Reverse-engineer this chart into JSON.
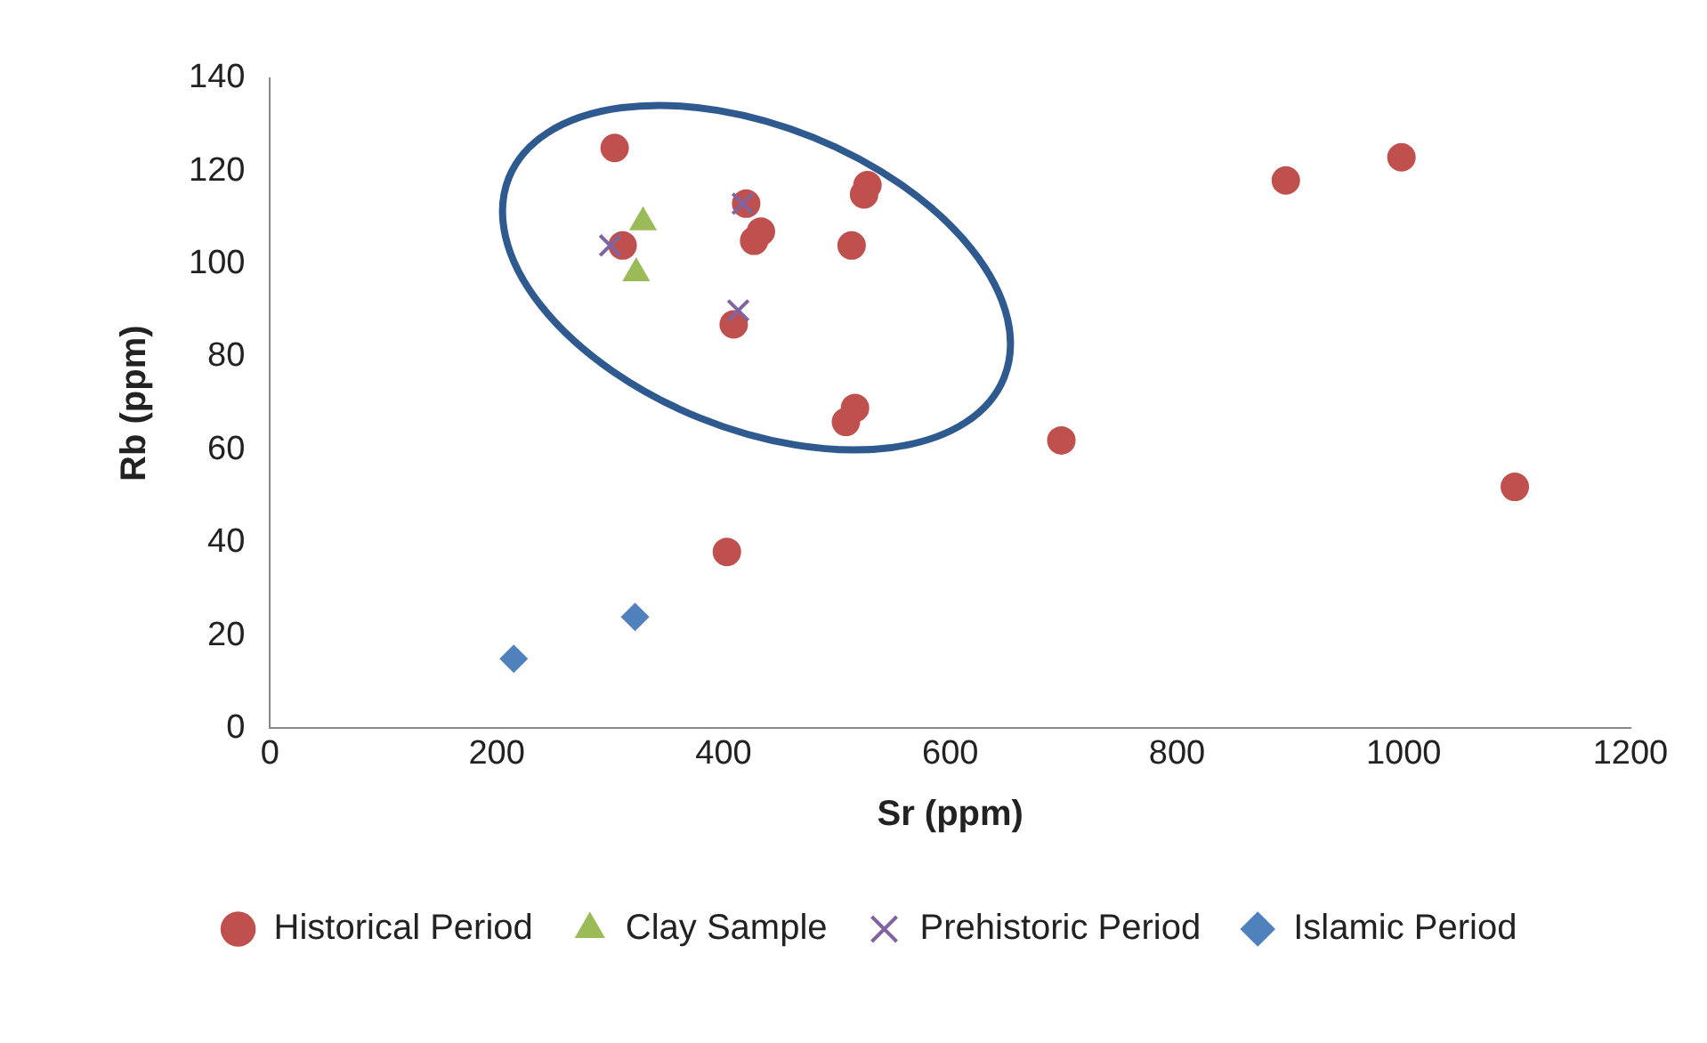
{
  "chart_data": {
    "type": "scatter",
    "xlabel": "Sr (ppm)",
    "ylabel": "Rb (ppm)",
    "xlim": [
      0,
      1200
    ],
    "xticks": [
      0,
      200,
      400,
      600,
      800,
      1000,
      1200
    ],
    "ylim": [
      0,
      140
    ],
    "yticks": [
      0,
      20,
      40,
      60,
      80,
      100,
      120,
      140
    ],
    "grid": false,
    "legend": "bottom",
    "series": [
      {
        "name": "Historical Period",
        "color": "#c0504d",
        "marker": "circle",
        "x": [
          304,
          311,
          420,
          427,
          433,
          409,
          527,
          524,
          513,
          516,
          508,
          698,
          896,
          998,
          1098,
          403
        ],
        "values": [
          125,
          104,
          113,
          105,
          107,
          87,
          117,
          115,
          104,
          69,
          66,
          62,
          118,
          123,
          52,
          38
        ]
      },
      {
        "name": "Clay Sample",
        "color": "#9bbb59",
        "marker": "triangle",
        "x": [
          329,
          323
        ],
        "values": [
          109,
          98
        ]
      },
      {
        "name": "Prehistoric Period",
        "color": "#8064a2",
        "marker": "cross",
        "x": [
          300,
          417,
          413
        ],
        "values": [
          104,
          113,
          90
        ]
      },
      {
        "name": "Islamic Period",
        "color": "#4f81bd",
        "marker": "diamond",
        "x": [
          215,
          322
        ],
        "values": [
          15,
          24
        ]
      }
    ]
  }
}
